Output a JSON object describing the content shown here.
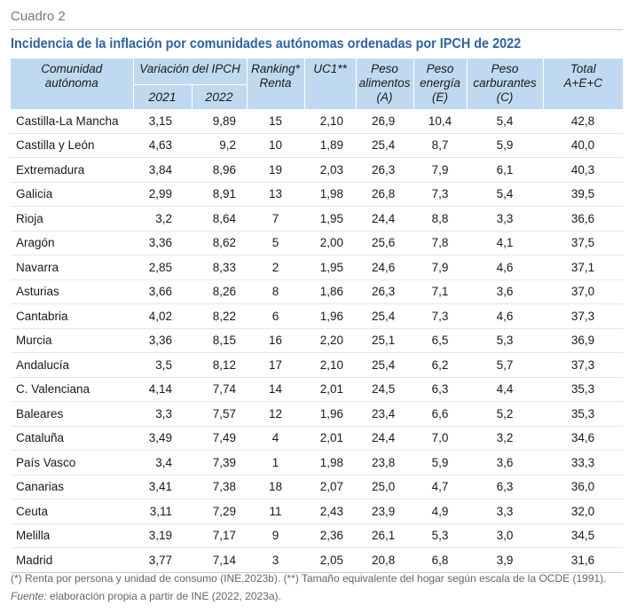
{
  "label": "Cuadro 2",
  "title": "Incidencia de la inflación por comunidades autónomas ordenadas por IPCH de 2022",
  "headers": {
    "comunidad": [
      "Comunidad",
      "autónoma"
    ],
    "variacion": "Variación del IPCH",
    "y2021": "2021",
    "y2022": "2022",
    "ranking": [
      "Ranking*",
      "Renta"
    ],
    "uc1": "UC1**",
    "alimentos": [
      "Peso",
      "alimentos",
      "(A)"
    ],
    "energia": [
      "Peso",
      "energía",
      "(E)"
    ],
    "carburantes": [
      "Peso",
      "carburantes",
      "(C)"
    ],
    "total": [
      "Total",
      "A+E+C"
    ]
  },
  "rows": [
    [
      "Castilla-La Mancha",
      "3,15",
      "9,89",
      "15",
      "2,10",
      "26,9",
      "10,4",
      "5,4",
      "42,8"
    ],
    [
      "Castilla y León",
      "4,63",
      "9,2",
      "10",
      "1,89",
      "25,4",
      "8,7",
      "5,9",
      "40,0"
    ],
    [
      "Extremadura",
      "3,84",
      "8,96",
      "19",
      "2,03",
      "26,3",
      "7,9",
      "6,1",
      "40,3"
    ],
    [
      "Galicia",
      "2,99",
      "8,91",
      "13",
      "1,98",
      "26,8",
      "7,3",
      "5,4",
      "39,5"
    ],
    [
      "Rioja",
      "3,2",
      "8,64",
      "7",
      "1,95",
      "24,4",
      "8,8",
      "3,3",
      "36,6"
    ],
    [
      "Aragón",
      "3,36",
      "8,62",
      "5",
      "2,00",
      "25,6",
      "7,8",
      "4,1",
      "37,5"
    ],
    [
      "Navarra",
      "2,85",
      "8,33",
      "2",
      "1,95",
      "24,6",
      "7,9",
      "4,6",
      "37,1"
    ],
    [
      "Asturias",
      "3,66",
      "8,26",
      "8",
      "1,86",
      "26,3",
      "7,1",
      "3,6",
      "37,0"
    ],
    [
      "Cantabria",
      "4,02",
      "8,22",
      "6",
      "1,96",
      "25,4",
      "7,3",
      "4,6",
      "37,3"
    ],
    [
      "Murcia",
      "3,36",
      "8,15",
      "16",
      "2,20",
      "25,1",
      "6,5",
      "5,3",
      "36,9"
    ],
    [
      "Andalucía",
      "3,5",
      "8,12",
      "17",
      "2,10",
      "25,4",
      "6,2",
      "5,7",
      "37,3"
    ],
    [
      "C. Valenciana",
      "4,14",
      "7,74",
      "14",
      "2,01",
      "24,5",
      "6,3",
      "4,4",
      "35,3"
    ],
    [
      "Baleares",
      "3,3",
      "7,57",
      "12",
      "1,96",
      "23,4",
      "6,6",
      "5,2",
      "35,3"
    ],
    [
      "Cataluña",
      "3,49",
      "7,49",
      "4",
      "2,01",
      "24,4",
      "7,0",
      "3,2",
      "34,6"
    ],
    [
      "País Vasco",
      "3,4",
      "7,39",
      "1",
      "1,98",
      "23,8",
      "5,9",
      "3,6",
      "33,3"
    ],
    [
      "Canarias",
      "3,41",
      "7,38",
      "18",
      "2,07",
      "25,0",
      "4,7",
      "6,3",
      "36,0"
    ],
    [
      "Ceuta",
      "3,11",
      "7,29",
      "11",
      "2,43",
      "23,9",
      "4,9",
      "3,3",
      "32,0"
    ],
    [
      "Melilla",
      "3,19",
      "7,17",
      "9",
      "2,36",
      "26,1",
      "5,3",
      "3,0",
      "34,5"
    ],
    [
      "Madrid",
      "3,77",
      "7,14",
      "3",
      "2,05",
      "20,8",
      "6,8",
      "3,9",
      "31,6"
    ]
  ],
  "footnote": "(*) Renta por persona y unidad de consumo (INE,2023b). (**) Tamaño equivalente del hogar según escala de la OCDE (1991).",
  "source_label": "Fuente:",
  "source_text": " elaboración propia a partir de INE (2022, 2023a).",
  "colors": {
    "title": "#2b63a8",
    "header_bg": "#bfdaf0",
    "label": "#777777"
  }
}
